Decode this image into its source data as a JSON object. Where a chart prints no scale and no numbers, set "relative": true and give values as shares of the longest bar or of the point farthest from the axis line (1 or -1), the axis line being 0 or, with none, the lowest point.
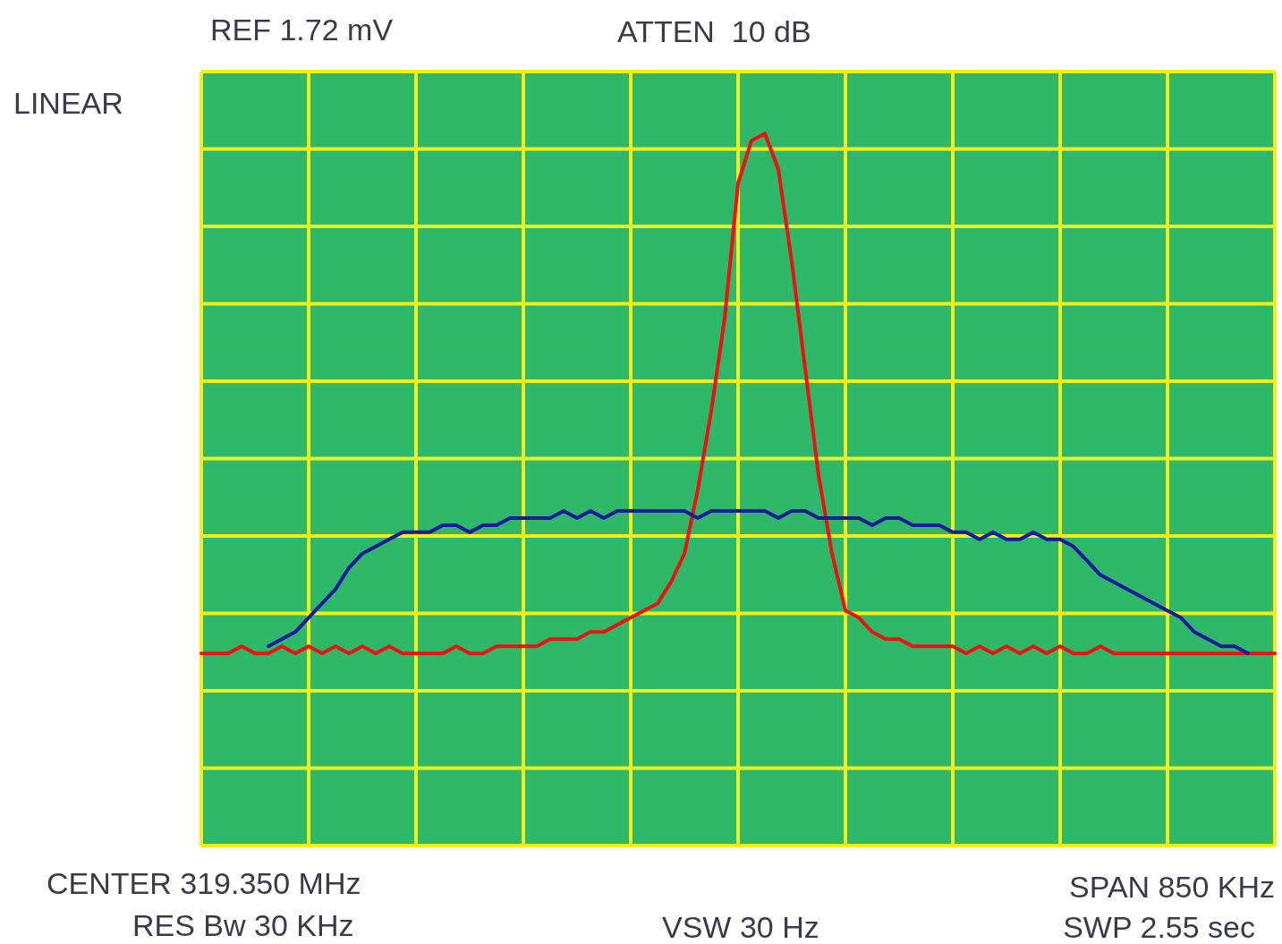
{
  "chart_data": {
    "type": "line",
    "relative": true,
    "grid": true,
    "marker": "none",
    "categories": [
      null,
      null,
      null,
      null,
      null,
      null,
      null,
      null,
      null,
      null,
      null,
      null,
      null,
      null,
      null,
      null,
      null,
      null,
      null,
      null,
      null,
      null,
      null,
      null,
      null,
      null,
      null,
      null,
      null,
      null,
      null,
      null,
      null,
      null,
      null,
      null,
      null,
      null,
      null,
      null,
      null,
      null,
      null,
      null,
      null,
      null,
      null,
      null,
      null,
      null,
      null,
      null,
      null,
      null,
      null,
      null,
      null,
      null,
      null,
      null,
      null,
      null,
      null,
      null,
      null,
      null,
      null,
      null,
      null,
      null,
      null,
      null,
      null,
      null,
      null,
      null,
      null,
      null,
      null,
      null,
      null
    ],
    "series": [
      {
        "color": "#1a1a9a",
        "values": [
          null,
          null,
          null,
          null,
          null,
          0.28,
          0.29,
          0.3,
          0.32,
          0.34,
          0.36,
          0.39,
          0.41,
          0.42,
          0.43,
          0.44,
          0.44,
          0.44,
          0.45,
          0.45,
          0.44,
          0.45,
          0.45,
          0.46,
          0.46,
          0.46,
          0.46,
          0.47,
          0.46,
          0.47,
          0.46,
          0.47,
          0.47,
          0.47,
          0.47,
          0.47,
          0.47,
          0.46,
          0.47,
          0.47,
          0.47,
          0.47,
          0.47,
          0.46,
          0.47,
          0.47,
          0.46,
          0.46,
          0.46,
          0.46,
          0.45,
          0.46,
          0.46,
          0.45,
          0.45,
          0.45,
          0.44,
          0.44,
          0.43,
          0.44,
          0.43,
          0.43,
          0.44,
          0.43,
          0.43,
          0.42,
          0.4,
          0.38,
          0.37,
          0.36,
          0.35,
          0.34,
          0.33,
          0.32,
          0.3,
          0.29,
          0.28,
          0.28,
          0.27,
          null,
          null
        ]
      },
      {
        "color": "#ee1111",
        "values": [
          0.27,
          0.27,
          0.27,
          0.28,
          0.27,
          0.27,
          0.28,
          0.27,
          0.28,
          0.27,
          0.28,
          0.27,
          0.28,
          0.27,
          0.28,
          0.27,
          0.27,
          0.27,
          0.27,
          0.28,
          0.27,
          0.27,
          0.28,
          0.28,
          0.28,
          0.28,
          0.29,
          0.29,
          0.29,
          0.3,
          0.3,
          0.31,
          0.32,
          0.33,
          0.34,
          0.37,
          0.41,
          0.5,
          0.61,
          0.74,
          0.93,
          0.99,
          1,
          0.95,
          0.82,
          0.67,
          0.52,
          0.41,
          0.33,
          0.32,
          0.3,
          0.29,
          0.29,
          0.28,
          0.28,
          0.28,
          0.28,
          0.27,
          0.28,
          0.27,
          0.28,
          0.27,
          0.28,
          0.27,
          0.28,
          0.27,
          0.27,
          0.28,
          0.27,
          0.27,
          0.27,
          0.27,
          0.27,
          0.27,
          0.27,
          0.27,
          0.27,
          0.27,
          0.27,
          0.27,
          0.27
        ]
      }
    ],
    "annotations": [
      "REF 1.72 mV",
      "ATTEN  10 dB",
      "LINEAR",
      "CENTER 319.350 MHz",
      "RES Bw 30 KHz",
      "VSW 30 Hz",
      "SPAN 850 KHz",
      "SWP 2.55 sec"
    ]
  }
}
